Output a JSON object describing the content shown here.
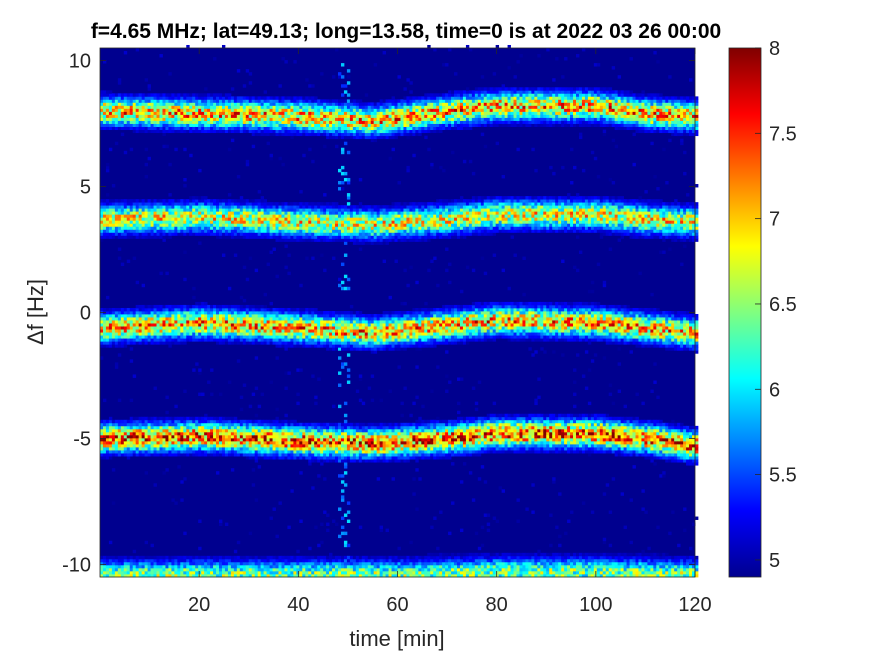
{
  "chart_data": {
    "type": "heatmap",
    "title": "f=4.65 MHz;  lat=49.13; long=13.58, time=0 is at 2022 03 26 00:00",
    "xlabel": "time [min]",
    "ylabel": "Δf [Hz]",
    "xlim": [
      0,
      120
    ],
    "ylim": [
      -10.5,
      10.5
    ],
    "xticks": [
      20,
      40,
      60,
      80,
      100,
      120
    ],
    "xtick_labels": [
      "20",
      "40",
      "60",
      "80",
      "100",
      "120"
    ],
    "yticks": [
      -10,
      -5,
      0,
      5,
      10
    ],
    "ytick_labels": [
      "-10",
      "-5",
      "0",
      "5",
      "10"
    ],
    "colorbar": {
      "colormap": "jet",
      "clim": [
        4.9,
        8
      ],
      "ticks": [
        5,
        5.5,
        6,
        6.5,
        7,
        7.5,
        8
      ],
      "tick_labels": [
        "5",
        "5.5",
        "6",
        "6.5",
        "7",
        "7.5",
        "8"
      ]
    },
    "background_level": 4.9,
    "spectral_lines": [
      {
        "points": [
          [
            0,
            8.0
          ],
          [
            20,
            7.9
          ],
          [
            40,
            7.8
          ],
          [
            55,
            7.6
          ],
          [
            70,
            8.0
          ],
          [
            80,
            8.2
          ],
          [
            100,
            8.2
          ],
          [
            110,
            7.9
          ],
          [
            120,
            7.8
          ]
        ],
        "peak": 7.3
      },
      {
        "points": [
          [
            0,
            3.7
          ],
          [
            20,
            3.8
          ],
          [
            40,
            3.6
          ],
          [
            55,
            3.5
          ],
          [
            70,
            3.7
          ],
          [
            80,
            3.9
          ],
          [
            100,
            3.9
          ],
          [
            110,
            3.7
          ],
          [
            120,
            3.6
          ]
        ],
        "peak": 7.0
      },
      {
        "points": [
          [
            0,
            -0.6
          ],
          [
            20,
            -0.4
          ],
          [
            40,
            -0.6
          ],
          [
            55,
            -0.8
          ],
          [
            70,
            -0.5
          ],
          [
            80,
            -0.3
          ],
          [
            100,
            -0.4
          ],
          [
            110,
            -0.6
          ],
          [
            120,
            -0.8
          ]
        ],
        "peak": 7.3
      },
      {
        "points": [
          [
            0,
            -5.0
          ],
          [
            20,
            -4.9
          ],
          [
            40,
            -5.1
          ],
          [
            55,
            -5.2
          ],
          [
            70,
            -5.0
          ],
          [
            80,
            -4.8
          ],
          [
            100,
            -4.8
          ],
          [
            110,
            -5.0
          ],
          [
            120,
            -5.3
          ]
        ],
        "peak": 7.6
      },
      {
        "points": [
          [
            0,
            -10.4
          ],
          [
            20,
            -10.4
          ],
          [
            40,
            -10.4
          ],
          [
            60,
            -10.4
          ],
          [
            80,
            -10.3
          ],
          [
            100,
            -10.3
          ],
          [
            120,
            -10.4
          ]
        ],
        "peak": 6.6
      }
    ],
    "disturbance_time": 49
  }
}
